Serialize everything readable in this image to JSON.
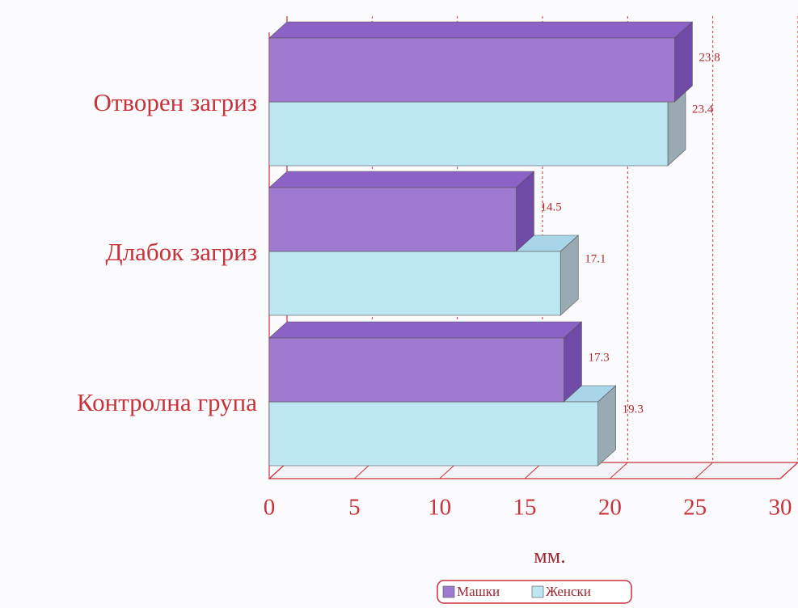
{
  "chart_data": {
    "type": "bar3d_horizontal",
    "categories": [
      "Отворен загриз",
      "Длабок загриз",
      "Контролна група"
    ],
    "series": [
      {
        "name": "Машки",
        "color": "#a07ad0",
        "values": [
          23.8,
          14.5,
          17.3
        ]
      },
      {
        "name": "Женски",
        "color": "#bde6f3",
        "values": [
          23.4,
          17.1,
          19.3
        ]
      }
    ],
    "xlabel": "мм.",
    "xlim": [
      0,
      30
    ],
    "xticks": [
      0,
      5,
      10,
      15,
      20,
      25,
      30
    ],
    "grid": true,
    "legend": "bottom"
  }
}
